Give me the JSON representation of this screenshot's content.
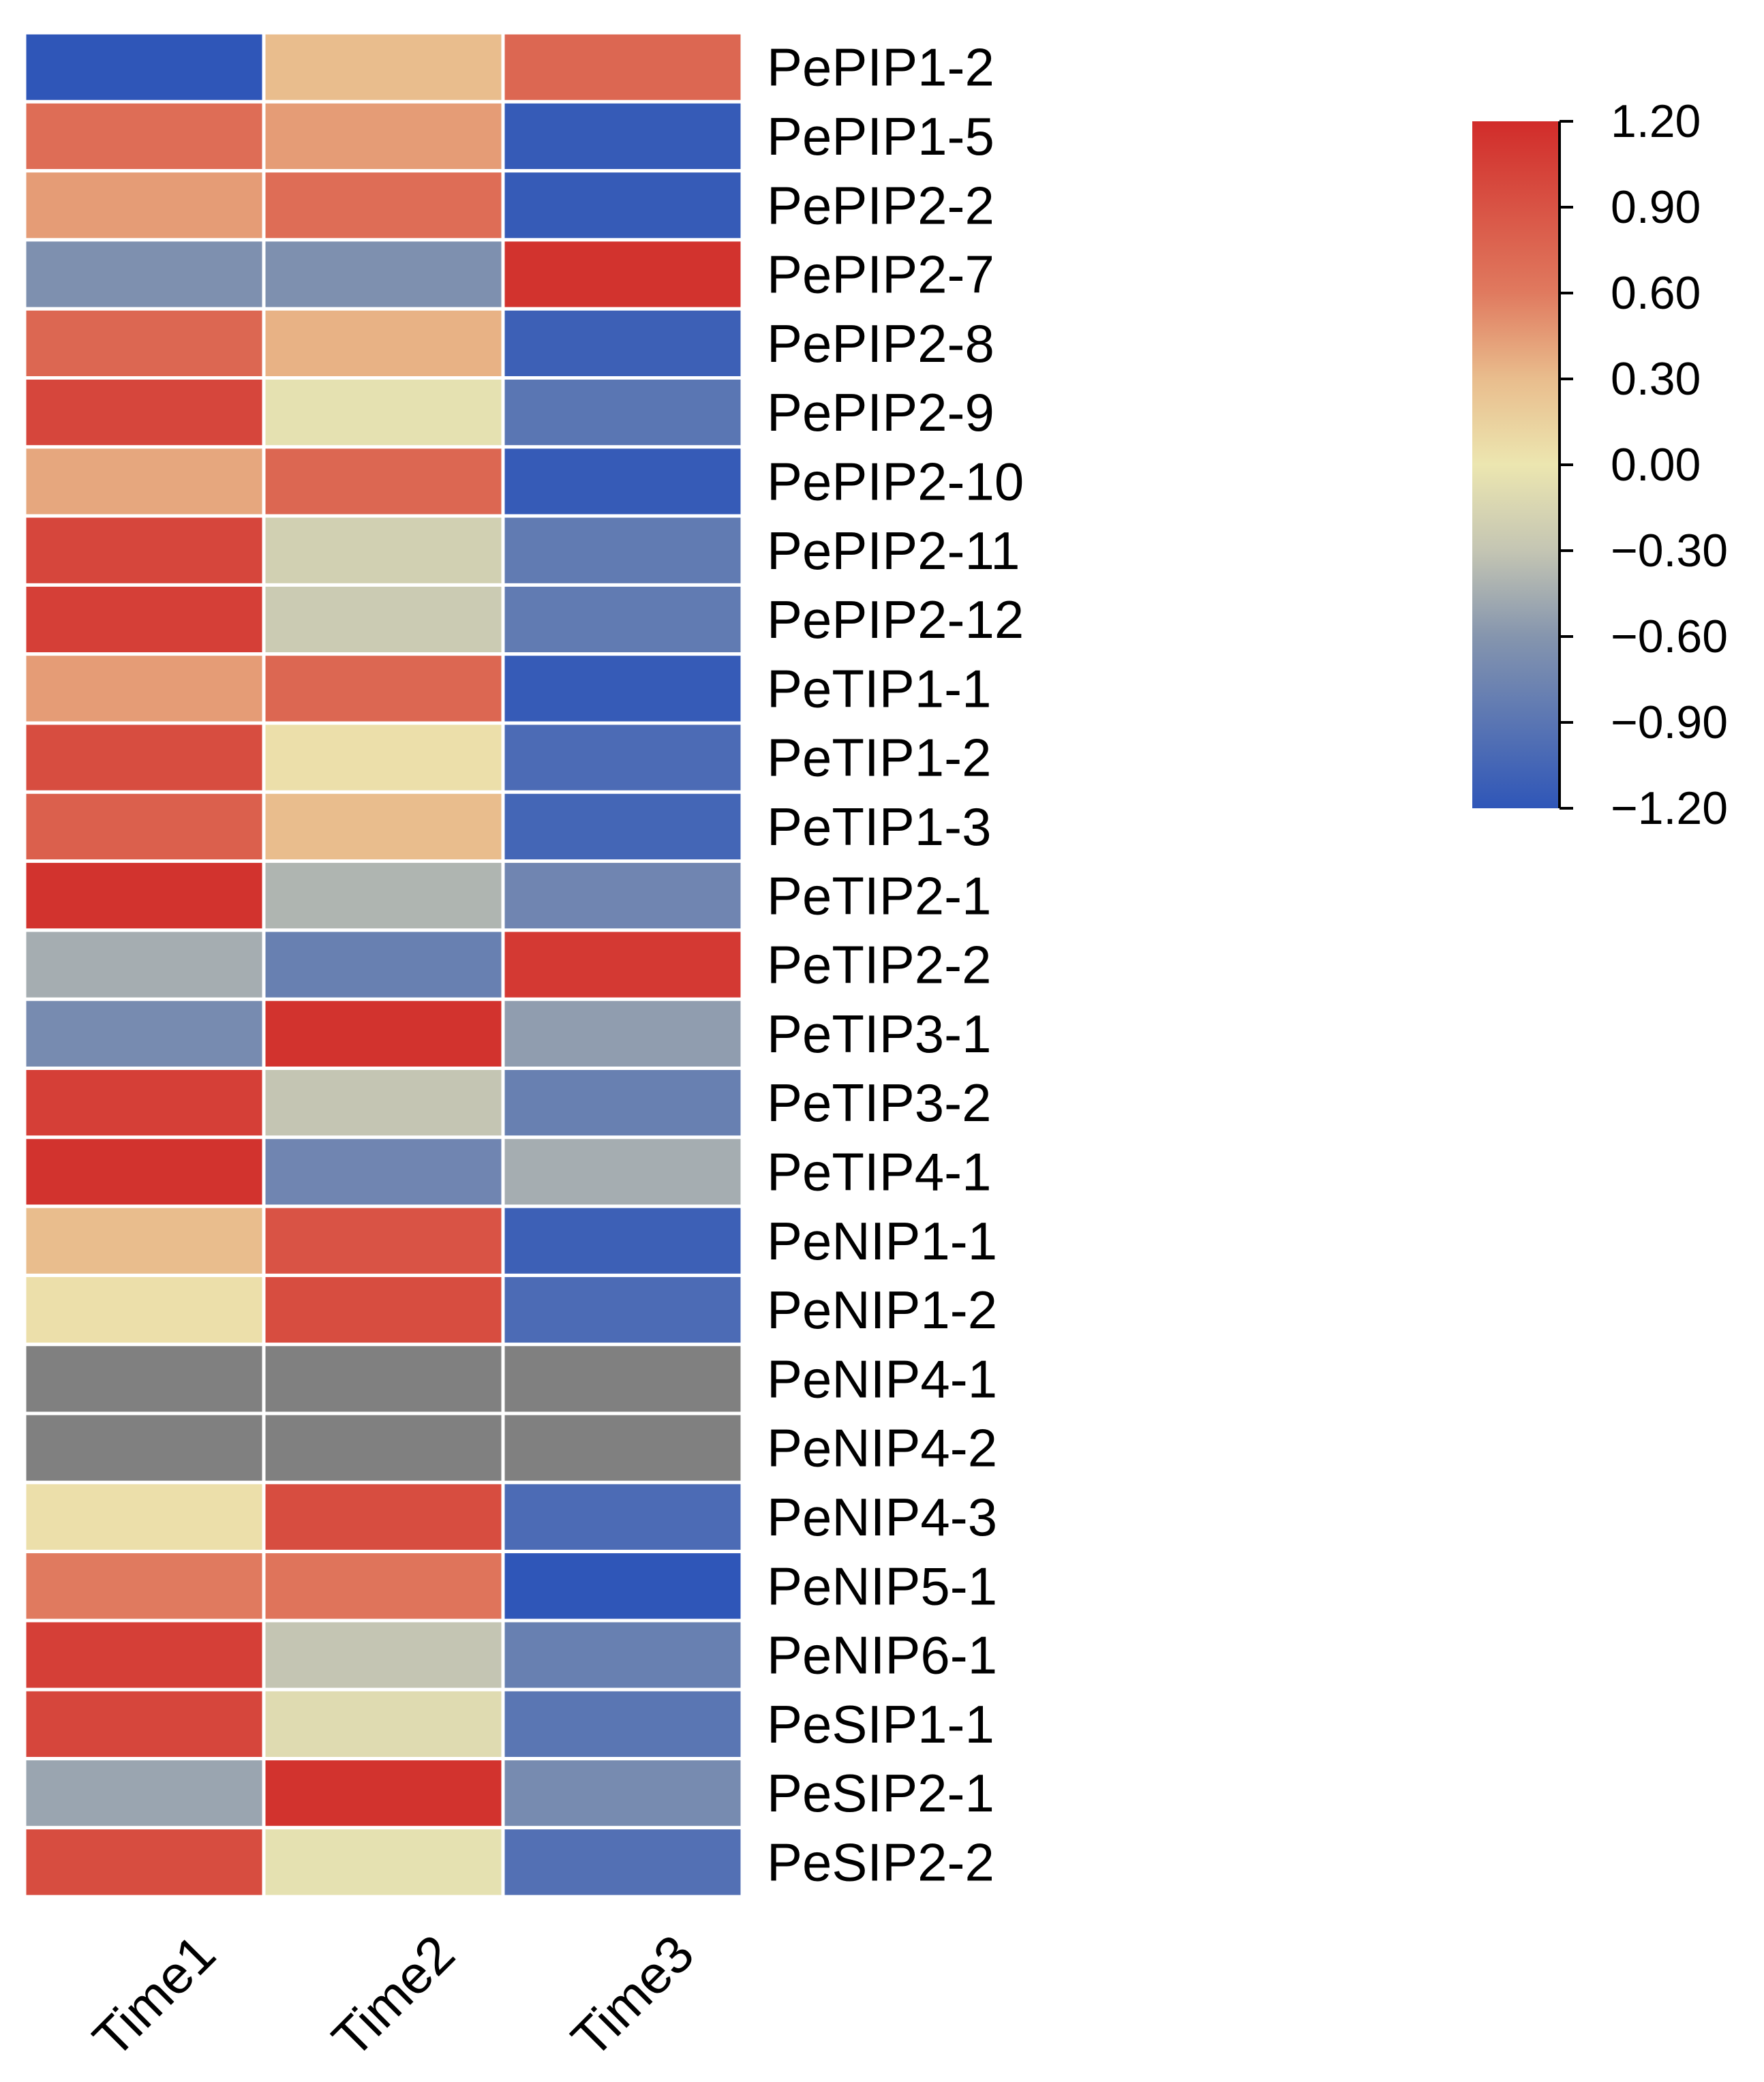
{
  "chart_data": {
    "type": "heatmap",
    "title": "",
    "columns": [
      "Time1",
      "Time2",
      "Time3"
    ],
    "rows": [
      {
        "gene": "PePIP1-2",
        "values": [
          -1.2,
          0.3,
          0.75
        ]
      },
      {
        "gene": "PePIP1-5",
        "values": [
          0.7,
          0.45,
          -1.15
        ]
      },
      {
        "gene": "PePIP2-2",
        "values": [
          0.45,
          0.7,
          -1.15
        ]
      },
      {
        "gene": "PePIP2-7",
        "values": [
          -0.65,
          -0.65,
          1.15
        ]
      },
      {
        "gene": "PePIP2-8",
        "values": [
          0.75,
          0.35,
          -1.1
        ]
      },
      {
        "gene": "PePIP2-9",
        "values": [
          1.0,
          -0.05,
          -0.9
        ]
      },
      {
        "gene": "PePIP2-10",
        "values": [
          0.4,
          0.75,
          -1.15
        ]
      },
      {
        "gene": "PePIP2-11",
        "values": [
          1.0,
          -0.2,
          -0.85
        ]
      },
      {
        "gene": "PePIP2-12",
        "values": [
          1.05,
          -0.25,
          -0.85
        ]
      },
      {
        "gene": "PeTIP1-1",
        "values": [
          0.45,
          0.75,
          -1.15
        ]
      },
      {
        "gene": "PeTIP1-2",
        "values": [
          0.95,
          0.05,
          -1.0
        ]
      },
      {
        "gene": "PeTIP1-3",
        "values": [
          0.8,
          0.3,
          -1.05
        ]
      },
      {
        "gene": "PeTIP2-1",
        "values": [
          1.15,
          -0.4,
          -0.75
        ]
      },
      {
        "gene": "PeTIP2-2",
        "values": [
          -0.45,
          -0.8,
          1.1
        ]
      },
      {
        "gene": "PeTIP3-1",
        "values": [
          -0.7,
          1.15,
          -0.55
        ]
      },
      {
        "gene": "PeTIP3-2",
        "values": [
          1.05,
          -0.3,
          -0.8
        ]
      },
      {
        "gene": "PeTIP4-1",
        "values": [
          1.15,
          -0.75,
          -0.45
        ]
      },
      {
        "gene": "PeNIP1-1",
        "values": [
          0.3,
          0.9,
          -1.1
        ]
      },
      {
        "gene": "PeNIP1-2",
        "values": [
          0.05,
          0.95,
          -1.0
        ]
      },
      {
        "gene": "PeNIP4-1",
        "values": [
          null,
          null,
          null
        ]
      },
      {
        "gene": "PeNIP4-2",
        "values": [
          null,
          null,
          null
        ]
      },
      {
        "gene": "PeNIP4-3",
        "values": [
          0.05,
          0.95,
          -1.0
        ]
      },
      {
        "gene": "PeNIP5-1",
        "values": [
          0.6,
          0.65,
          -1.2
        ]
      },
      {
        "gene": "PeNIP6-1",
        "values": [
          1.05,
          -0.3,
          -0.8
        ]
      },
      {
        "gene": "PeSIP1-1",
        "values": [
          1.0,
          -0.1,
          -0.9
        ]
      },
      {
        "gene": "PeSIP2-1",
        "values": [
          -0.5,
          1.15,
          -0.7
        ]
      },
      {
        "gene": "PeSIP2-2",
        "values": [
          0.95,
          -0.05,
          -0.95
        ]
      }
    ],
    "missing_color": "#808080",
    "colorbar": {
      "min": -1.2,
      "max": 1.2,
      "ticks": [
        "1.20",
        "0.90",
        "0.60",
        "0.30",
        "0.00",
        "−0.30",
        "−0.60",
        "−0.90",
        "−1.20"
      ],
      "color_stops": [
        {
          "value": -1.2,
          "color": "#2f56b8"
        },
        {
          "value": -0.6,
          "color": "#8595ae"
        },
        {
          "value": -0.3,
          "color": "#c4c5b3"
        },
        {
          "value": 0.0,
          "color": "#ece6b0"
        },
        {
          "value": 0.3,
          "color": "#e9bd8d"
        },
        {
          "value": 0.6,
          "color": "#e07a5f"
        },
        {
          "value": 1.2,
          "color": "#d12c2a"
        }
      ],
      "placement": "right"
    }
  }
}
